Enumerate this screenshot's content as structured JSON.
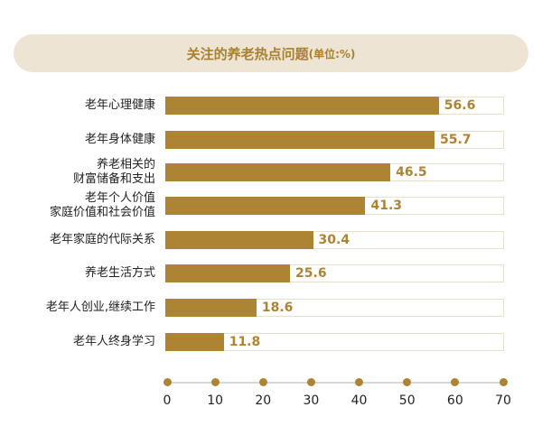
{
  "chart_data": {
    "type": "bar",
    "orientation": "horizontal",
    "title": "关注的养老热点问题",
    "unit": "(单位:%)",
    "categories": [
      [
        "老年心理健康"
      ],
      [
        "老年身体健康"
      ],
      [
        "养老相关的",
        "财富储备和支出"
      ],
      [
        "老年个人价值",
        "家庭价值和社会价值"
      ],
      [
        "老年家庭的代际关系"
      ],
      [
        "养老生活方式"
      ],
      [
        "老年人创业,继续工作"
      ],
      [
        "老年人终身学习"
      ]
    ],
    "values": [
      56.6,
      55.7,
      46.5,
      41.3,
      30.4,
      25.6,
      18.6,
      11.8
    ],
    "value_labels": [
      "56.6",
      "55.7",
      "46.5",
      "41.3",
      "30.4",
      "25.6",
      "18.6",
      "11.8"
    ],
    "xlim": [
      0,
      70
    ],
    "ticks": [
      "0",
      "10",
      "20",
      "30",
      "40",
      "50",
      "60",
      "70"
    ],
    "grid": false,
    "colors": {
      "bar": "#ad8334",
      "title_bg": "#ede4d4",
      "title_text": "#a8812f",
      "axis": "#d8d8d8"
    }
  }
}
